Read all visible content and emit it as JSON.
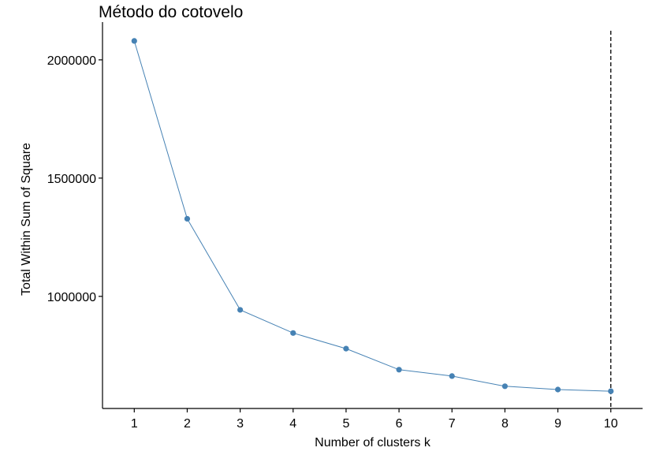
{
  "chart_data": {
    "type": "line",
    "title": "Método do cotovelo",
    "xlabel": "Number of clusters k",
    "ylabel": "Total Within Sum of Square",
    "x": [
      1,
      2,
      3,
      4,
      5,
      6,
      7,
      8,
      9,
      10
    ],
    "series": [
      {
        "values": [
          2080000,
          1328000,
          943000,
          845000,
          779000,
          690000,
          663000,
          620000,
          606000,
          599000
        ]
      }
    ],
    "x_ticks": [
      "1",
      "2",
      "3",
      "4",
      "5",
      "6",
      "7",
      "8",
      "9",
      "10"
    ],
    "y_ticks": [
      1000000,
      1500000,
      2000000
    ],
    "y_tick_labels": [
      "1000000",
      "1500000",
      "2000000"
    ],
    "xlim": [
      0.4,
      10.6
    ],
    "ylim": [
      526000,
      2153000
    ],
    "vline": 10,
    "grid": false,
    "colors": {
      "series": "#4682B4",
      "axis": "#000000",
      "vline": "#000000"
    }
  }
}
